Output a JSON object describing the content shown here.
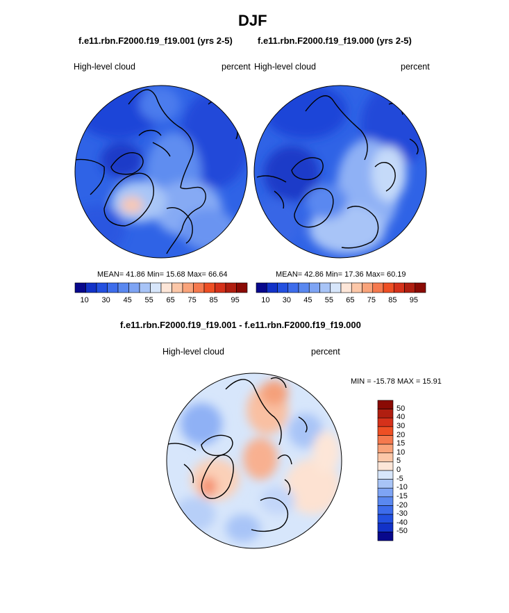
{
  "page": {
    "title": "DJF"
  },
  "top_panels": [
    {
      "case": "f.e11.rbn.F2000.f19_f19.001 (yrs 2-5)",
      "field": "High-level cloud",
      "units": "percent",
      "stats": {
        "mean_label": "MEAN=",
        "mean": "41.86",
        "min_label": "Min=",
        "min": "15.68",
        "max_label": "Max=",
        "max": "66.64"
      }
    },
    {
      "case": "f.e11.rbn.F2000.f19_f19.000 (yrs 2-5)",
      "field": "High-level cloud",
      "units": "percent",
      "stats": {
        "mean_label": "MEAN=",
        "mean": "42.86",
        "min_label": "Min=",
        "min": "17.36",
        "max_label": "Max=",
        "max": "60.19"
      }
    }
  ],
  "top_colorbar": {
    "tick_labels": [
      "10",
      "30",
      "45",
      "55",
      "65",
      "75",
      "85",
      "95"
    ],
    "colors": [
      "#08088c",
      "#1232c8",
      "#2350e0",
      "#3d6ceb",
      "#5a88f0",
      "#7ea4f4",
      "#a8c4f7",
      "#d7e6fb",
      "#fde6d8",
      "#fcc7a8",
      "#f9a37a",
      "#f5794e",
      "#ee4f24",
      "#d5311a",
      "#b01e10",
      "#8a0a04"
    ]
  },
  "diff_panel": {
    "title": "f.e11.rbn.F2000.f19_f19.001 - f.e11.rbn.F2000.f19_f19.000",
    "field": "High-level cloud",
    "units": "percent",
    "minmax": "MIN = -15.78 MAX =  15.91"
  },
  "diff_colorbar": {
    "tick_labels": [
      "50",
      "40",
      "30",
      "20",
      "15",
      "10",
      "5",
      "0",
      "-5",
      "-10",
      "-15",
      "-20",
      "-30",
      "-40",
      "-50"
    ],
    "colors": [
      "#8a0a04",
      "#b01e10",
      "#d5311a",
      "#ee4f24",
      "#f5794e",
      "#f9a37a",
      "#fcc7a8",
      "#fde6d8",
      "#d7e6fb",
      "#a8c4f7",
      "#7ea4f4",
      "#5a88f0",
      "#3d6ceb",
      "#2350e0",
      "#1232c8",
      "#08088c"
    ]
  }
}
